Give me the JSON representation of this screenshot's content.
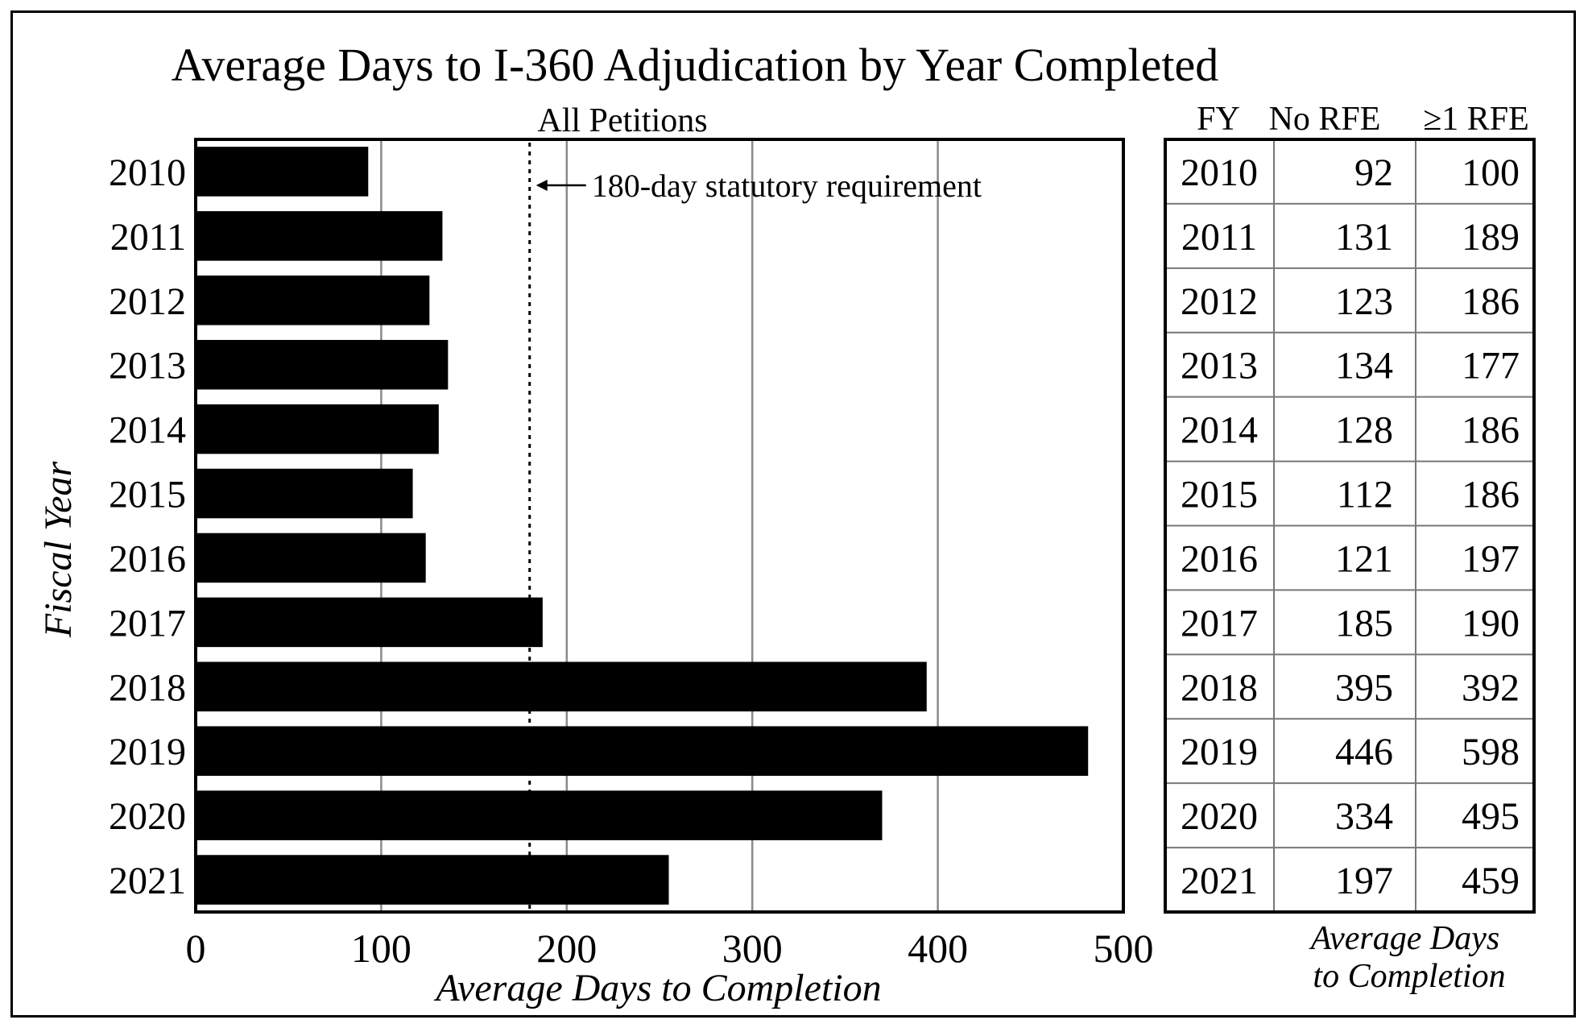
{
  "chart_data": {
    "type": "bar",
    "orientation": "horizontal",
    "title": "Average Days to I-360 Adjudication by Year Completed",
    "subtitle": "All Petitions",
    "xlabel": "Average Days to Completion",
    "ylabel": "Fiscal Year",
    "xlim": [
      0,
      500
    ],
    "xticks": [
      "0",
      "100",
      "200",
      "300",
      "400",
      "500"
    ],
    "xtick_values": [
      0,
      100,
      200,
      300,
      400,
      500
    ],
    "grid": "vertical",
    "categories": [
      "2010",
      "2011",
      "2012",
      "2013",
      "2014",
      "2015",
      "2016",
      "2017",
      "2018",
      "2019",
      "2020",
      "2021"
    ],
    "values": [
      93,
      133,
      126,
      136,
      131,
      117,
      124,
      187,
      394,
      481,
      370,
      255
    ],
    "bar_color": "#000000",
    "reference_line": {
      "value": 180,
      "style": "dotted",
      "label": "180-day statutory requirement"
    }
  },
  "table": {
    "headers": [
      "FY",
      "No RFE",
      "≥1 RFE"
    ],
    "rows": [
      [
        "2010",
        "92",
        "100"
      ],
      [
        "2011",
        "131",
        "189"
      ],
      [
        "2012",
        "123",
        "186"
      ],
      [
        "2013",
        "134",
        "177"
      ],
      [
        "2014",
        "128",
        "186"
      ],
      [
        "2015",
        "112",
        "186"
      ],
      [
        "2016",
        "121",
        "197"
      ],
      [
        "2017",
        "185",
        "190"
      ],
      [
        "2018",
        "395",
        "392"
      ],
      [
        "2019",
        "446",
        "598"
      ],
      [
        "2020",
        "334",
        "495"
      ],
      [
        "2021",
        "197",
        "459"
      ]
    ],
    "caption_line1": "Average Days",
    "caption_line2": "to Completion"
  }
}
